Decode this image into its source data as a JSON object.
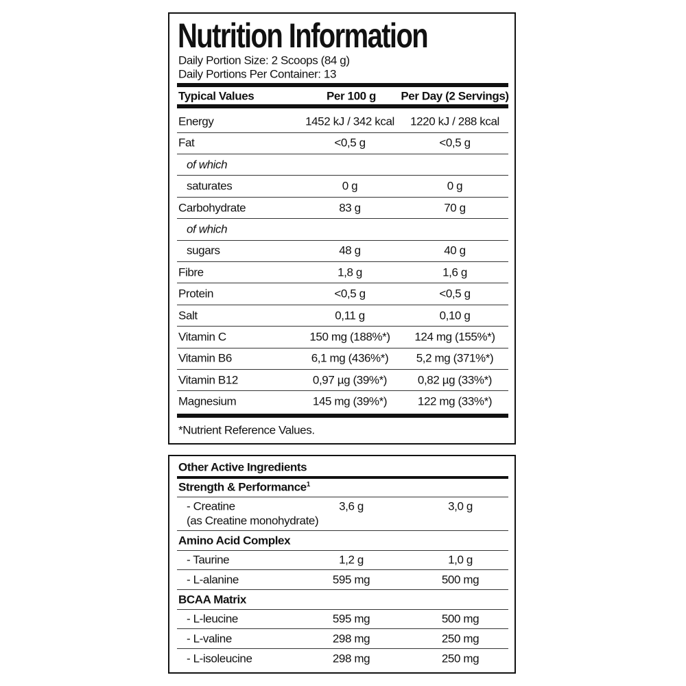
{
  "panel1": {
    "title": "Nutrition Information",
    "portion_size": "Daily Portion Size: 2 Scoops (84 g)",
    "portions": "Daily Portions Per Container: 13",
    "header": [
      "Typical Values",
      "Per 100 g",
      "Per Day (2 Servings)"
    ],
    "rows": [
      {
        "label": "Energy",
        "values": [
          "1452 kJ / 342 kcal",
          "1220 kJ / 288 kcal"
        ]
      },
      {
        "label": "Fat",
        "values": [
          "<0,5 g",
          "<0,5 g"
        ]
      },
      {
        "label": "of which",
        "italic": true,
        "indent": true
      },
      {
        "label": "saturates",
        "indent": true,
        "values": [
          "0 g",
          "0 g"
        ]
      },
      {
        "label": "Carbohydrate",
        "values": [
          "83 g",
          "70 g"
        ]
      },
      {
        "label": "of which",
        "italic": true,
        "indent": true
      },
      {
        "label": "sugars",
        "indent": true,
        "values": [
          "48 g",
          "40 g"
        ]
      },
      {
        "label": "Fibre",
        "values": [
          "1,8 g",
          "1,6 g"
        ]
      },
      {
        "label": "Protein",
        "values": [
          "<0,5 g",
          "<0,5 g"
        ]
      },
      {
        "label": "Salt",
        "values": [
          "0,11 g",
          "0,10 g"
        ]
      },
      {
        "label": "Vitamin C",
        "values": [
          "150 mg (188%*)",
          "124 mg (155%*)"
        ]
      },
      {
        "label": "Vitamin B6",
        "values": [
          "6,1 mg (436%*)",
          "5,2 mg (371%*)"
        ]
      },
      {
        "label": "Vitamin B12",
        "values": [
          "0,97 µg (39%*)",
          "0,82 µg (33%*)"
        ]
      },
      {
        "label": "Magnesium",
        "values": [
          "145 mg (39%*)",
          "122 mg (33%*)"
        ]
      }
    ],
    "footnote": "*Nutrient Reference Values."
  },
  "panel2": {
    "title": "Other Active Ingredients",
    "groups": [
      {
        "name": "Strength & Performance",
        "sup": "1",
        "items": [
          {
            "label": "- Creatine",
            "note": "(as Creatine monohydrate)",
            "values": [
              "3,6 g",
              "3,0 g"
            ]
          }
        ]
      },
      {
        "name": "Amino Acid Complex",
        "items": [
          {
            "label": "- Taurine",
            "values": [
              "1,2 g",
              "1,0 g"
            ]
          },
          {
            "label": "- L-alanine",
            "values": [
              "595 mg",
              "500 mg"
            ]
          }
        ]
      },
      {
        "name": "BCAA Matrix",
        "items": [
          {
            "label": "- L-leucine",
            "values": [
              "595 mg",
              "500 mg"
            ]
          },
          {
            "label": "- L-valine",
            "values": [
              "298 mg",
              "250 mg"
            ]
          },
          {
            "label": "- L-isoleucine",
            "values": [
              "298 mg",
              "250 mg"
            ]
          }
        ]
      }
    ]
  }
}
